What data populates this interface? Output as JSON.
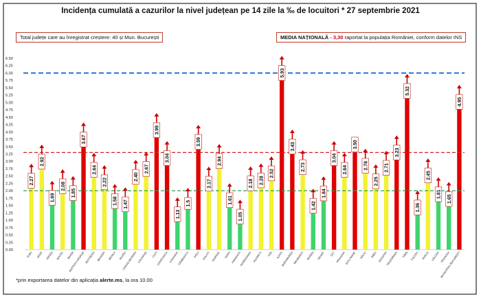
{
  "header": {
    "title": "Incidența cumulată a cazurilor la nivel județean pe 14 zile la ‰ de locuitori * 27 septembrie 2021"
  },
  "info_left": {
    "label": "Total județe care au înregistrat creștere:",
    "value": "40 și Mun. București"
  },
  "info_right": {
    "label": "MEDIA NAȚIONALĂ",
    "dash": " - ",
    "value": "3,30",
    "suffix": " raportat la populația României, conform datelor INS"
  },
  "footnote": {
    "prefix": "*prin exportarea datelor din aplicația ",
    "app": "alerte.ms",
    "suffix": ", la ora 10.00"
  },
  "colors": {
    "yellow": "#f2f230",
    "green": "#3fd46d",
    "red": "#e00000",
    "national_line": "#d62020",
    "upper_line": "#1f6fd0",
    "lower_line": "#2f9e4f",
    "frame": "#2a2a2a",
    "arrow": "#cc0000"
  },
  "chart_data": {
    "type": "bar",
    "categories": [
      "ALBA",
      "ARAD",
      "ARGEȘ",
      "BACĂU",
      "BIHOR",
      "BISTRIȚA-NĂSĂUD",
      "BOTOȘANI",
      "BRAȘOV",
      "BRĂILA",
      "BUZĂU",
      "CARAȘ-SEVERIN",
      "CĂLĂRAȘI",
      "CLUJ",
      "CONSTANȚA",
      "COVASNA",
      "DÂMBOVIȚA",
      "DOLJ",
      "GALAȚI",
      "GIURGIU",
      "GORJ",
      "HARGHITA",
      "HUNEDOARA",
      "IALOMIȚA",
      "IAȘI",
      "ILFOV",
      "MARAMUREȘ",
      "MEHEDINȚI",
      "MUREȘ",
      "NEAMȚ",
      "OLT",
      "PRAHOVA",
      "SATU MARE",
      "SĂLAJ",
      "SIBIU",
      "SUCEAVA",
      "TELEORMAN",
      "TIMIȘ",
      "TULCEA",
      "VASLUI",
      "VÂLCEA",
      "VRANCEA",
      "MUNICIPIUL BUCUREȘTI"
    ],
    "values": [
      2.27,
      2.92,
      1.69,
      2.08,
      1.85,
      3.67,
      2.64,
      2.22,
      1.58,
      1.47,
      2.4,
      2.67,
      3.99,
      3.04,
      1.13,
      1.5,
      3.59,
      2.17,
      2.94,
      1.61,
      1.05,
      2.18,
      2.28,
      2.52,
      5.93,
      3.43,
      2.73,
      1.42,
      1.84,
      3.04,
      2.64,
      3.5,
      2.78,
      2.25,
      2.71,
      3.23,
      5.32,
      1.36,
      2.45,
      1.81,
      1.65,
      4.95
    ],
    "value_labels": [
      "2.27",
      "2.92",
      "1.69",
      "2.08",
      "1.85",
      "3.67",
      "2.64",
      "2.22",
      "1.58",
      "1.47",
      "2.40",
      "2.67",
      "3.99",
      "3.04",
      "1.13",
      "1.5",
      "3.59",
      "2.17",
      "2.94",
      "1.61",
      "1.05",
      "2.18",
      "2.28",
      "2.52",
      "5.93",
      "3.43",
      "2.73",
      "1.42",
      "1.84",
      "3.04",
      "2.64",
      "3.50",
      "2.78",
      "2.25",
      "2.71",
      "3.23",
      "5.32",
      "1.36",
      "2.45",
      "1.81",
      "1.65",
      "4.95"
    ],
    "bar_colors": [
      "yellow",
      "yellow",
      "green",
      "yellow",
      "green",
      "red",
      "yellow",
      "yellow",
      "green",
      "green",
      "yellow",
      "yellow",
      "red",
      "red",
      "green",
      "green",
      "red",
      "yellow",
      "yellow",
      "green",
      "green",
      "yellow",
      "yellow",
      "yellow",
      "red",
      "red",
      "yellow",
      "green",
      "green",
      "red",
      "yellow",
      "red",
      "yellow",
      "yellow",
      "yellow",
      "red",
      "red",
      "green",
      "yellow",
      "green",
      "green",
      "red"
    ],
    "arrows": [
      true,
      true,
      true,
      true,
      true,
      true,
      true,
      true,
      true,
      true,
      true,
      true,
      true,
      true,
      true,
      true,
      true,
      true,
      true,
      true,
      true,
      true,
      true,
      true,
      true,
      true,
      true,
      true,
      true,
      true,
      true,
      false,
      true,
      true,
      true,
      true,
      true,
      true,
      true,
      true,
      true,
      true
    ],
    "y_ticks": [
      "0.00",
      "0.25",
      "0.50",
      "0.75",
      "1.00",
      "1.25",
      "1.50",
      "1.75",
      "2.00",
      "2.25",
      "2.50",
      "2.75",
      "3.00",
      "3.25",
      "3.50",
      "3.75",
      "4.00",
      "4.25",
      "4.50",
      "4.75",
      "5.00",
      "5.25",
      "5.50",
      "5.75",
      "6.00",
      "6.25",
      "6.50"
    ],
    "ylim": [
      0,
      6.5
    ],
    "reference_lines": [
      {
        "value": 6.0,
        "color": "upper_line"
      },
      {
        "value": 3.3,
        "color": "national_line"
      },
      {
        "value": 2.0,
        "color": "lower_line"
      }
    ],
    "grid": false,
    "title": "",
    "xlabel": "",
    "ylabel": ""
  }
}
